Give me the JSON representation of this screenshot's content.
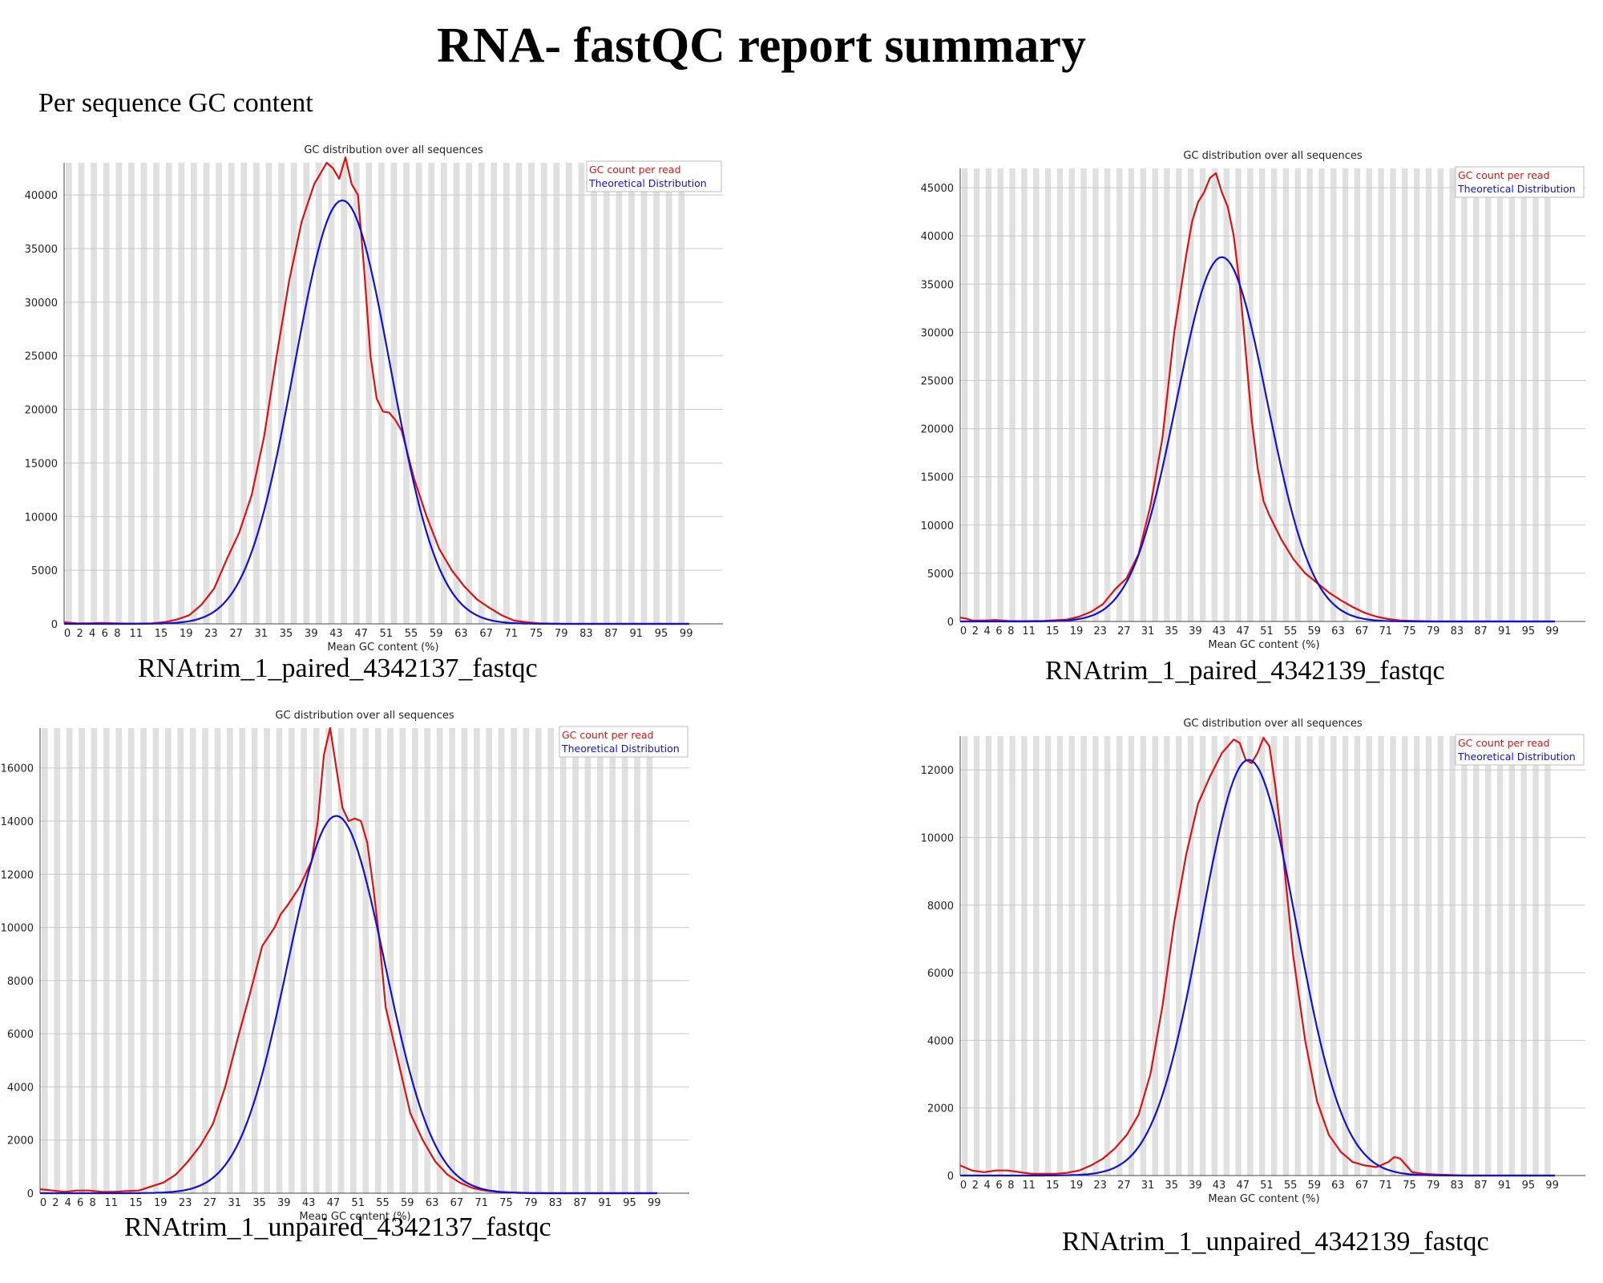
{
  "title": "RNA- fastQC report summary",
  "section": "Per sequence GC content",
  "colors": {
    "gc_count": "#dd1111",
    "theoretical": "#1010dd",
    "stripe": "#e0e0e0",
    "grid": "#c8c8c8"
  },
  "chart_data": [
    {
      "type": "line",
      "title": "GC distribution over all sequences",
      "xlabel": "Mean GC content (%)",
      "caption": "RNAtrim_1_paired_4342137_fastqc",
      "xlim": [
        0,
        100
      ],
      "ylim": [
        0,
        43000
      ],
      "yticks": [
        0,
        5000,
        10000,
        15000,
        20000,
        25000,
        30000,
        35000,
        40000
      ],
      "xticks": [
        0,
        2,
        4,
        6,
        8,
        11,
        15,
        19,
        23,
        27,
        31,
        35,
        39,
        43,
        47,
        51,
        55,
        59,
        63,
        67,
        71,
        75,
        79,
        83,
        87,
        91,
        95,
        99
      ],
      "grid": true,
      "legend": "top-right",
      "series": [
        {
          "name": "GC count per read",
          "color": "#dd1111",
          "x": [
            0,
            2,
            4,
            6,
            8,
            10,
            12,
            14,
            16,
            18,
            20,
            22,
            24,
            26,
            28,
            30,
            32,
            34,
            36,
            38,
            40,
            41,
            42,
            43,
            44,
            45,
            46,
            47,
            48,
            49,
            50,
            51,
            52,
            53,
            54,
            56,
            58,
            60,
            62,
            64,
            66,
            68,
            70,
            72,
            74,
            76,
            80,
            90,
            100
          ],
          "y": [
            150,
            50,
            50,
            80,
            50,
            30,
            30,
            50,
            150,
            400,
            800,
            1800,
            3300,
            6000,
            8500,
            12000,
            17500,
            25000,
            32000,
            37500,
            41000,
            42000,
            43000,
            42500,
            41500,
            43500,
            41000,
            40000,
            33000,
            25000,
            21000,
            19800,
            19700,
            19000,
            18000,
            13500,
            10000,
            7000,
            5000,
            3500,
            2300,
            1500,
            800,
            300,
            150,
            50,
            0,
            0,
            0
          ]
        },
        {
          "name": "Theoretical Distribution",
          "color": "#1010dd",
          "gaussian": {
            "mean": 44.5,
            "sd": 7.7,
            "peak": 39500
          }
        }
      ]
    },
    {
      "type": "line",
      "title": "GC distribution over all sequences",
      "xlabel": "Mean GC content (%)",
      "caption": "RNAtrim_1_paired_4342139_fastqc",
      "xlim": [
        0,
        100
      ],
      "ylim": [
        0,
        47000
      ],
      "yticks": [
        0,
        5000,
        10000,
        15000,
        20000,
        25000,
        30000,
        35000,
        40000,
        45000
      ],
      "xticks": [
        0,
        2,
        4,
        6,
        8,
        11,
        15,
        19,
        23,
        27,
        31,
        35,
        39,
        43,
        47,
        51,
        55,
        59,
        63,
        67,
        71,
        75,
        79,
        83,
        87,
        91,
        95,
        99
      ],
      "grid": true,
      "legend": "top-right",
      "series": [
        {
          "name": "GC count per read",
          "color": "#dd1111",
          "x": [
            0,
            1,
            2,
            4,
            6,
            8,
            10,
            14,
            18,
            20,
            22,
            24,
            26,
            28,
            30,
            32,
            34,
            36,
            38,
            39,
            40,
            41,
            42,
            43,
            44,
            45,
            46,
            47,
            48,
            49,
            50,
            51,
            52,
            54,
            56,
            58,
            60,
            62,
            64,
            66,
            68,
            70,
            72,
            74,
            76,
            80,
            90,
            100
          ],
          "y": [
            400,
            300,
            100,
            100,
            150,
            50,
            30,
            50,
            200,
            500,
            1000,
            1800,
            3300,
            4500,
            7000,
            12000,
            19000,
            30000,
            38000,
            41500,
            43500,
            44500,
            46000,
            46500,
            44500,
            43000,
            40000,
            35000,
            28000,
            21000,
            16000,
            12500,
            11000,
            8500,
            6500,
            5000,
            4000,
            3000,
            2200,
            1500,
            900,
            500,
            250,
            100,
            50,
            0,
            0,
            0
          ]
        },
        {
          "name": "Theoretical Distribution",
          "color": "#1010dd",
          "gaussian": {
            "mean": 44.0,
            "sd": 7.6,
            "peak": 37800
          }
        }
      ]
    },
    {
      "type": "line",
      "title": "GC distribution over all sequences",
      "xlabel": "Mean GC content (%)",
      "caption": "RNAtrim_1_unpaired_4342137_fastqc",
      "xlim": [
        0,
        100
      ],
      "ylim": [
        0,
        17500
      ],
      "yticks": [
        0,
        2000,
        4000,
        6000,
        8000,
        10000,
        12000,
        14000,
        16000
      ],
      "xticks": [
        0,
        2,
        4,
        6,
        8,
        11,
        15,
        19,
        23,
        27,
        31,
        35,
        39,
        43,
        47,
        51,
        55,
        59,
        63,
        67,
        71,
        75,
        79,
        83,
        87,
        91,
        95,
        99
      ],
      "grid": true,
      "legend": "top-right",
      "series": [
        {
          "name": "GC count per read",
          "color": "#dd1111",
          "x": [
            0,
            2,
            4,
            6,
            8,
            10,
            12,
            14,
            16,
            18,
            20,
            22,
            24,
            26,
            28,
            30,
            32,
            34,
            36,
            38,
            39,
            40,
            42,
            44,
            45,
            46,
            47,
            48,
            49,
            50,
            51,
            52,
            53,
            54,
            55,
            56,
            58,
            60,
            62,
            64,
            66,
            68,
            70,
            72,
            74,
            76,
            80,
            90,
            100
          ],
          "y": [
            150,
            100,
            50,
            100,
            100,
            50,
            50,
            80,
            100,
            250,
            400,
            700,
            1200,
            1800,
            2600,
            4000,
            5800,
            7500,
            9300,
            10000,
            10500,
            10800,
            11500,
            12500,
            14000,
            16500,
            17500,
            16000,
            14500,
            14000,
            14100,
            14000,
            13200,
            11500,
            9500,
            7000,
            5000,
            3000,
            2000,
            1200,
            700,
            400,
            200,
            100,
            50,
            30,
            0,
            0,
            0
          ]
        },
        {
          "name": "Theoretical Distribution",
          "color": "#1010dd",
          "gaussian": {
            "mean": 48.0,
            "sd": 7.9,
            "peak": 14200
          }
        }
      ]
    },
    {
      "type": "line",
      "title": "GC distribution over all sequences",
      "xlabel": "Mean GC content (%)",
      "caption": "RNAtrim_1_unpaired_4342139_fastqc",
      "xlim": [
        0,
        100
      ],
      "ylim": [
        0,
        13000
      ],
      "yticks": [
        0,
        2000,
        4000,
        6000,
        8000,
        10000,
        12000
      ],
      "xticks": [
        0,
        2,
        4,
        6,
        8,
        11,
        15,
        19,
        23,
        27,
        31,
        35,
        39,
        43,
        47,
        51,
        55,
        59,
        63,
        67,
        71,
        75,
        79,
        83,
        87,
        91,
        95,
        99
      ],
      "grid": true,
      "legend": "top-right",
      "series": [
        {
          "name": "GC count per read",
          "color": "#dd1111",
          "x": [
            0,
            2,
            4,
            6,
            8,
            10,
            12,
            14,
            16,
            18,
            20,
            22,
            24,
            26,
            28,
            30,
            32,
            34,
            36,
            38,
            40,
            42,
            44,
            46,
            47,
            48,
            49,
            50,
            51,
            52,
            53,
            54,
            56,
            58,
            60,
            62,
            64,
            66,
            68,
            70,
            72,
            73,
            74,
            75,
            76,
            78,
            80,
            85,
            90,
            100
          ],
          "y": [
            300,
            150,
            100,
            150,
            150,
            100,
            50,
            50,
            50,
            80,
            150,
            300,
            500,
            800,
            1200,
            1800,
            3000,
            5000,
            7500,
            9500,
            11000,
            11800,
            12500,
            12900,
            12800,
            12300,
            12200,
            12500,
            12950,
            12700,
            11500,
            10000,
            6500,
            4000,
            2200,
            1200,
            700,
            400,
            300,
            250,
            400,
            550,
            500,
            300,
            100,
            50,
            30,
            0,
            0,
            0
          ]
        },
        {
          "name": "Theoretical Distribution",
          "color": "#1010dd",
          "gaussian": {
            "mean": 48.5,
            "sd": 8.0,
            "peak": 12300
          }
        }
      ]
    }
  ]
}
